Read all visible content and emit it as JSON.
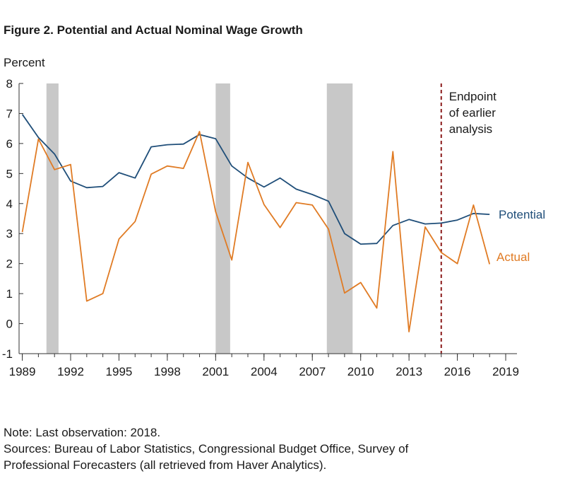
{
  "figure_title": "Figure 2.  Potential and Actual Nominal Wage Growth",
  "note": {
    "line1": "Note: Last observation: 2018.",
    "line2": "Sources: Bureau of Labor Statistics, Congressional Budget Office, Survey of",
    "line3": "Professional Forecasters (all retrieved from Haver Analytics)."
  },
  "chart_data": {
    "type": "line",
    "ylabel": "Percent",
    "xlabel": "",
    "ylim": [
      -1,
      8
    ],
    "xlim": [
      1988.8,
      2019.7
    ],
    "yticks": [
      -1,
      0,
      1,
      2,
      3,
      4,
      5,
      6,
      7,
      8
    ],
    "xticks": [
      1989,
      1992,
      1995,
      1998,
      2001,
      2004,
      2007,
      2010,
      2013,
      2016,
      2019
    ],
    "grid": false,
    "recessions": [
      [
        1990.5,
        1991.25
      ],
      [
        2001.0,
        2001.9
      ],
      [
        2007.9,
        2009.5
      ]
    ],
    "vline": {
      "x": 2015,
      "label": [
        "Endpoint",
        "of earlier",
        "analysis"
      ]
    },
    "series": [
      {
        "name": "Potential",
        "color": "#1f4e79",
        "x": [
          1989,
          1990,
          1991,
          1992,
          1993,
          1994,
          1995,
          1996,
          1997,
          1998,
          1999,
          2000,
          2001,
          2002,
          2003,
          2004,
          2005,
          2006,
          2007,
          2008,
          2009,
          2010,
          2011,
          2012,
          2013,
          2014,
          2015,
          2016,
          2017,
          2018
        ],
        "values": [
          6.97,
          6.2,
          5.65,
          4.75,
          4.53,
          4.57,
          5.03,
          4.85,
          5.89,
          5.96,
          5.98,
          6.3,
          6.16,
          5.25,
          4.85,
          4.55,
          4.85,
          4.48,
          4.3,
          4.08,
          3.0,
          2.65,
          2.67,
          3.27,
          3.47,
          3.32,
          3.35,
          3.45,
          3.67,
          3.64
        ]
      },
      {
        "name": "Actual",
        "color": "#e07b24",
        "x": [
          1989,
          1990,
          1991,
          1992,
          1993,
          1994,
          1995,
          1996,
          1997,
          1998,
          1999,
          2000,
          2001,
          2002,
          2003,
          2004,
          2005,
          2006,
          2007,
          2008,
          2009,
          2010,
          2011,
          2012,
          2013,
          2014,
          2015,
          2016,
          2017,
          2018
        ],
        "values": [
          3.05,
          6.15,
          5.13,
          5.3,
          0.75,
          1.0,
          2.82,
          3.4,
          4.98,
          5.25,
          5.17,
          6.4,
          3.73,
          2.12,
          5.37,
          3.97,
          3.2,
          4.03,
          3.95,
          3.15,
          1.02,
          1.37,
          0.52,
          5.73,
          -0.27,
          3.22,
          2.37,
          2.0,
          3.95,
          1.98
        ]
      }
    ]
  }
}
